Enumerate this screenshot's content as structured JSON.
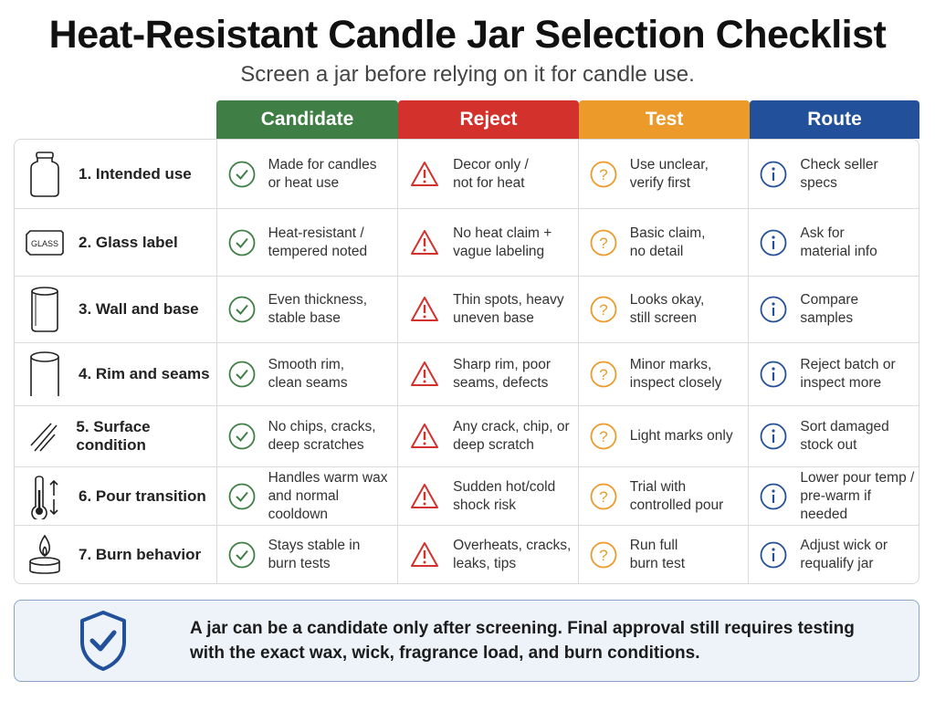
{
  "title": "Heat-Resistant Candle Jar Selection Checklist",
  "subtitle": "Screen a jar before relying on it for candle use.",
  "colors": {
    "candidate": "#3f7f45",
    "reject": "#d3312c",
    "test": "#ec9a29",
    "route": "#22509a"
  },
  "columns": [
    "Candidate",
    "Reject",
    "Test",
    "Route"
  ],
  "rows": [
    {
      "icon": "jar-icon",
      "label": "1. Intended use",
      "candidate": "Made for candles\nor heat use",
      "reject": "Decor only /\nnot for heat",
      "test": "Use unclear,\nverify first",
      "route": "Check seller\nspecs"
    },
    {
      "icon": "glass-label-icon",
      "icon_text": "GLASS",
      "label": "2. Glass label",
      "candidate": "Heat-resistant /\ntempered noted",
      "reject": "No heat claim +\nvague labeling",
      "test": "Basic claim,\nno detail",
      "route": "Ask for\nmaterial info"
    },
    {
      "icon": "cylinder-glass-icon",
      "label": "3. Wall and base",
      "candidate": "Even thickness,\nstable base",
      "reject": "Thin spots, heavy\nuneven base",
      "test": "Looks okay,\nstill screen",
      "route": "Compare\nsamples"
    },
    {
      "icon": "rim-icon",
      "label": "4. Rim and seams",
      "candidate": "Smooth rim,\nclean seams",
      "reject": "Sharp rim, poor\nseams, defects",
      "test": "Minor marks,\ninspect closely",
      "route": "Reject batch or\ninspect more"
    },
    {
      "icon": "scratch-icon",
      "label": "5. Surface condition",
      "candidate": "No chips, cracks,\ndeep scratches",
      "reject": "Any crack, chip, or\ndeep scratch",
      "test": "Light marks only",
      "route": "Sort damaged\nstock out"
    },
    {
      "icon": "thermometer-icon",
      "label": "6. Pour transition",
      "candidate": "Handles warm wax\nand normal cooldown",
      "reject": "Sudden hot/cold\nshock risk",
      "test": "Trial with\ncontrolled pour",
      "route": "Lower pour temp /\npre-warm if needed"
    },
    {
      "icon": "candle-flame-icon",
      "label": "7. Burn behavior",
      "candidate": "Stays stable in\nburn tests",
      "reject": "Overheats, cracks,\nleaks, tips",
      "test": "Run full\nburn test",
      "route": "Adjust wick or\nrequalify jar"
    }
  ],
  "footer": {
    "icon": "shield-check-icon",
    "text": "A jar can be a candidate only after screening. Final approval still requires testing\nwith the exact wax, wick, fragrance load, and burn conditions."
  }
}
